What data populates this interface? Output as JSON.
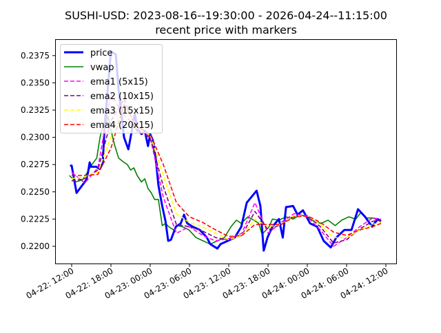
{
  "chart_data": {
    "type": "line",
    "title": "SUSHI-USD: 2023-08-16--19:30:00 - 2026-04-24--11:15:00",
    "subtitle": "recent price with markers",
    "xlabel": "",
    "ylabel": "",
    "ylim": [
      0.2192,
      0.2385
    ],
    "grid": false,
    "legend_position": "top-left",
    "y_ticks": [
      "0.2200",
      "0.2225",
      "0.2250",
      "0.2275",
      "0.2300",
      "0.2325",
      "0.2350",
      "0.2375"
    ],
    "x_ticks": [
      "04-22: 12:00",
      "04-22: 18:00",
      "04-23: 00:00",
      "04-23: 06:00",
      "04-23: 12:00",
      "04-23: 18:00",
      "04-24: 00:00",
      "04-24: 06:00",
      "04-24: 12:00"
    ],
    "series": [
      {
        "name": "price",
        "color": "#0000ff",
        "style": "solid",
        "x": [
          "04-22 11:45",
          "04-22 12:00",
          "04-22 12:45",
          "04-22 13:45",
          "04-22 14:15",
          "04-22 14:30",
          "04-22 14:45",
          "04-22 15:00",
          "04-22 15:45",
          "04-22 16:15",
          "04-22 16:45",
          "04-22 17:00",
          "04-22 17:30",
          "04-22 18:00",
          "04-22 18:45",
          "04-22 19:10",
          "04-22 20:00",
          "04-22 20:40",
          "04-22 21:00",
          "04-22 21:40",
          "04-22 22:00",
          "04-22 22:40",
          "04-22 23:10",
          "04-22 23:40",
          "04-23 00:00",
          "04-23 00:25",
          "04-23 00:50",
          "04-23 01:15",
          "04-23 01:50",
          "04-23 02:20",
          "04-23 02:45",
          "04-23 03:10",
          "04-23 03:55",
          "04-23 04:40",
          "04-23 05:10",
          "04-23 05:40",
          "04-23 06:30",
          "04-23 07:35",
          "04-23 08:40",
          "04-23 09:10",
          "04-23 10:15",
          "04-23 10:45",
          "04-23 11:50",
          "04-23 12:55",
          "04-23 13:55",
          "04-23 14:45",
          "04-23 16:15",
          "04-23 16:50",
          "04-23 17:20",
          "04-23 17:55",
          "04-23 18:40",
          "04-23 19:40",
          "04-23 20:15",
          "04-23 20:45",
          "04-23 21:50",
          "04-23 22:30",
          "04-23 23:20",
          "04-24 00:25",
          "04-24 01:30",
          "04-24 02:30",
          "04-24 03:35",
          "04-24 04:25",
          "04-24 05:40",
          "04-24 06:45",
          "04-24 07:45",
          "04-24 08:50",
          "04-24 09:55",
          "04-24 10:45",
          "04-24 11:15"
        ],
        "values": [
          0.2274,
          0.2274,
          0.2249,
          0.2257,
          0.2261,
          0.2268,
          0.2277,
          0.2273,
          0.2273,
          0.2271,
          0.2276,
          0.2306,
          0.2344,
          0.2379,
          0.2376,
          0.2344,
          0.23,
          0.2289,
          0.23,
          0.2322,
          0.2308,
          0.2303,
          0.2306,
          0.2292,
          0.2303,
          0.2297,
          0.2281,
          0.2256,
          0.2237,
          0.2223,
          0.2205,
          0.2206,
          0.2218,
          0.2221,
          0.2229,
          0.2221,
          0.2218,
          0.2215,
          0.2208,
          0.2202,
          0.2198,
          0.2202,
          0.2205,
          0.2208,
          0.2218,
          0.224,
          0.2251,
          0.2237,
          0.2196,
          0.2208,
          0.2218,
          0.2225,
          0.2208,
          0.2236,
          0.2237,
          0.2229,
          0.2233,
          0.2221,
          0.2218,
          0.2205,
          0.2199,
          0.2208,
          0.2215,
          0.2215,
          0.2234,
          0.2227,
          0.2218,
          0.2225,
          0.2223
        ]
      },
      {
        "name": "vwap",
        "color": "#008000",
        "style": "solid",
        "x": [
          "04-22 11:40",
          "04-22 12:35",
          "04-22 13:40",
          "04-22 14:25",
          "04-22 15:05",
          "04-22 15:50",
          "04-22 16:20",
          "04-22 16:50",
          "04-22 17:10",
          "04-22 17:35",
          "04-22 17:55",
          "04-22 18:30",
          "04-22 19:10",
          "04-22 20:00",
          "04-22 20:30",
          "04-22 21:00",
          "04-22 21:30",
          "04-22 22:00",
          "04-22 22:40",
          "04-22 23:10",
          "04-22 23:40",
          "04-23 00:10",
          "04-23 00:40",
          "04-23 01:15",
          "04-23 01:50",
          "04-23 02:20",
          "04-23 02:50",
          "04-23 03:35",
          "04-23 04:10",
          "04-23 04:55",
          "04-23 05:55",
          "04-23 07:00",
          "04-23 08:05",
          "04-23 09:10",
          "04-23 10:15",
          "04-23 11:20",
          "04-23 12:20",
          "04-23 13:10",
          "04-23 13:55",
          "04-23 14:55",
          "04-23 15:50",
          "04-23 16:35",
          "04-23 17:05",
          "04-23 18:10",
          "04-23 18:40",
          "04-23 19:40",
          "04-23 20:45",
          "04-23 21:50",
          "04-23 22:55",
          "04-24 00:00",
          "04-24 01:00",
          "04-24 02:05",
          "04-24 03:10",
          "04-24 04:15",
          "04-24 05:15",
          "04-24 06:20",
          "04-24 07:25",
          "04-24 08:10",
          "04-24 09:00",
          "04-24 10:00",
          "04-24 10:45",
          "04-24 11:15"
        ],
        "values": [
          0.2265,
          0.2259,
          0.2261,
          0.2268,
          0.2275,
          0.2281,
          0.23,
          0.2313,
          0.2311,
          0.2319,
          0.2309,
          0.2294,
          0.2281,
          0.2277,
          0.2275,
          0.227,
          0.2272,
          0.2265,
          0.2259,
          0.2262,
          0.2253,
          0.2249,
          0.2243,
          0.2243,
          0.2219,
          0.2221,
          0.2218,
          0.2215,
          0.2219,
          0.2218,
          0.2215,
          0.2208,
          0.2205,
          0.2202,
          0.2205,
          0.2208,
          0.2218,
          0.2224,
          0.2221,
          0.2227,
          0.2224,
          0.2221,
          0.2211,
          0.2218,
          0.2225,
          0.2224,
          0.2227,
          0.2225,
          0.2229,
          0.2227,
          0.2223,
          0.2221,
          0.2224,
          0.2219,
          0.2224,
          0.2227,
          0.2225,
          0.2231,
          0.2226,
          0.2226,
          0.2224,
          0.2223
        ]
      },
      {
        "name": "ema1 (5x15)",
        "color": "#ff00ff",
        "style": "dashed",
        "x_ref": "ema_x",
        "values": [
          0.2268,
          0.2258,
          0.2272,
          0.234,
          0.232,
          0.231,
          0.23,
          0.2245,
          0.2212,
          0.2218,
          0.221,
          0.2205,
          0.2207,
          0.2212,
          0.224,
          0.2212,
          0.2222,
          0.223,
          0.2227,
          0.2215,
          0.22,
          0.2208,
          0.2218,
          0.2226,
          0.2225
        ]
      },
      {
        "name": "ema2 (10x15)",
        "color": "#800080",
        "style": "dashed",
        "x_ref": "ema_x",
        "values": [
          0.226,
          0.2262,
          0.227,
          0.2315,
          0.2335,
          0.2305,
          0.23,
          0.2255,
          0.222,
          0.2218,
          0.2214,
          0.2208,
          0.2206,
          0.221,
          0.2232,
          0.2215,
          0.222,
          0.2228,
          0.2228,
          0.2218,
          0.2203,
          0.2206,
          0.2216,
          0.2223,
          0.2224
        ]
      },
      {
        "name": "ema3 (15x15)",
        "color": "#ffff00",
        "style": "dashed",
        "x_ref": "ema_x",
        "values": [
          0.2262,
          0.2264,
          0.2268,
          0.23,
          0.233,
          0.2308,
          0.2302,
          0.2265,
          0.223,
          0.2222,
          0.2218,
          0.2212,
          0.2206,
          0.221,
          0.2225,
          0.2218,
          0.222,
          0.2228,
          0.2228,
          0.222,
          0.2208,
          0.2208,
          0.2215,
          0.222,
          0.2222
        ]
      },
      {
        "name": "ema4 (20x15)",
        "color": "#ff0000",
        "style": "dashed",
        "x_ref": "ema_x",
        "values": [
          0.2265,
          0.2265,
          0.2266,
          0.229,
          0.233,
          0.231,
          0.2303,
          0.2275,
          0.224,
          0.2227,
          0.2222,
          0.2215,
          0.2209,
          0.221,
          0.222,
          0.222,
          0.222,
          0.2227,
          0.2228,
          0.2222,
          0.2213,
          0.221,
          0.2215,
          0.2218,
          0.2221
        ]
      }
    ],
    "ema_x": [
      "04-22 12:00",
      "04-22 14:00",
      "04-22 16:00",
      "04-22 18:00",
      "04-22 20:00",
      "04-22 22:00",
      "04-23 00:00",
      "04-23 02:00",
      "04-23 04:00",
      "04-23 06:00",
      "04-23 08:00",
      "04-23 10:00",
      "04-23 12:00",
      "04-23 14:00",
      "04-23 16:00",
      "04-23 18:00",
      "04-23 20:00",
      "04-23 22:00",
      "04-24 00:00",
      "04-24 02:00",
      "04-24 04:00",
      "04-24 06:00",
      "04-24 08:00",
      "04-24 10:00",
      "04-24 11:15"
    ]
  }
}
